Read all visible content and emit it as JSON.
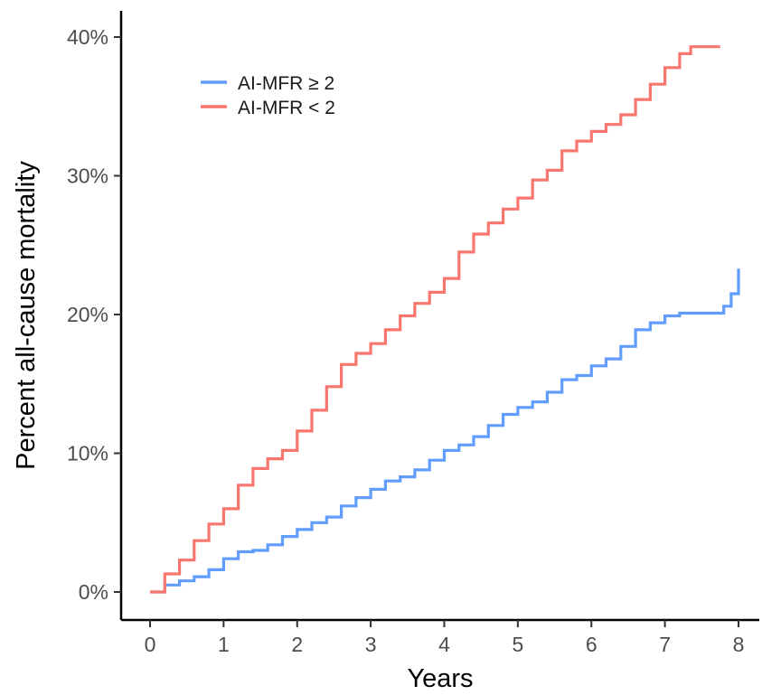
{
  "chart_data": {
    "type": "line",
    "title": "",
    "xlabel": "Years",
    "ylabel": "Percent all-cause mortality",
    "xlim": [
      0,
      8
    ],
    "ylim": [
      0,
      40
    ],
    "x_ticks": [
      0,
      1,
      2,
      3,
      4,
      5,
      6,
      7,
      8
    ],
    "y_ticks": [
      0,
      10,
      20,
      30,
      40
    ],
    "x_tick_labels": [
      "0",
      "1",
      "2",
      "3",
      "4",
      "5",
      "6",
      "7",
      "8"
    ],
    "y_tick_labels": [
      "0%",
      "10%",
      "20%",
      "30%",
      "40%"
    ],
    "grid": false,
    "legend_position": "top-left",
    "series": [
      {
        "name": "AI-MFR ≥ 2",
        "color": "#619CFF",
        "x": [
          0,
          0.2,
          0.4,
          0.6,
          0.8,
          1.0,
          1.2,
          1.4,
          1.6,
          1.8,
          2.0,
          2.2,
          2.4,
          2.6,
          2.8,
          3.0,
          3.2,
          3.4,
          3.6,
          3.8,
          4.0,
          4.2,
          4.4,
          4.6,
          4.8,
          5.0,
          5.2,
          5.4,
          5.6,
          5.8,
          6.0,
          6.2,
          6.4,
          6.6,
          6.8,
          7.0,
          7.2,
          7.4,
          7.6,
          7.8,
          7.9,
          8.0
        ],
        "y": [
          0,
          0.5,
          0.8,
          1.1,
          1.6,
          2.4,
          2.9,
          3.0,
          3.4,
          4.0,
          4.5,
          5.0,
          5.4,
          6.2,
          6.8,
          7.4,
          8.0,
          8.3,
          8.8,
          9.5,
          10.2,
          10.6,
          11.2,
          12.0,
          12.8,
          13.3,
          13.7,
          14.4,
          15.3,
          15.6,
          16.3,
          16.8,
          17.7,
          18.9,
          19.4,
          19.9,
          20.1,
          20.1,
          20.1,
          20.6,
          21.5,
          23.3
        ]
      },
      {
        "name": "AI-MFR < 2",
        "color": "#F8766D",
        "x": [
          0,
          0.2,
          0.4,
          0.6,
          0.8,
          1.0,
          1.2,
          1.4,
          1.6,
          1.8,
          2.0,
          2.2,
          2.4,
          2.6,
          2.8,
          3.0,
          3.2,
          3.4,
          3.6,
          3.8,
          4.0,
          4.2,
          4.4,
          4.6,
          4.8,
          5.0,
          5.2,
          5.4,
          5.6,
          5.8,
          6.0,
          6.2,
          6.4,
          6.6,
          6.8,
          7.0,
          7.2,
          7.35,
          7.5,
          7.75
        ],
        "y": [
          0,
          1.3,
          2.3,
          3.7,
          4.9,
          6.0,
          7.7,
          8.9,
          9.6,
          10.2,
          11.6,
          13.1,
          14.8,
          16.4,
          17.2,
          17.9,
          18.9,
          19.9,
          20.8,
          21.6,
          22.6,
          24.5,
          25.8,
          26.6,
          27.6,
          28.4,
          29.7,
          30.4,
          31.8,
          32.5,
          33.2,
          33.7,
          34.4,
          35.5,
          36.6,
          37.8,
          38.8,
          39.3,
          39.3,
          39.3
        ]
      }
    ]
  }
}
